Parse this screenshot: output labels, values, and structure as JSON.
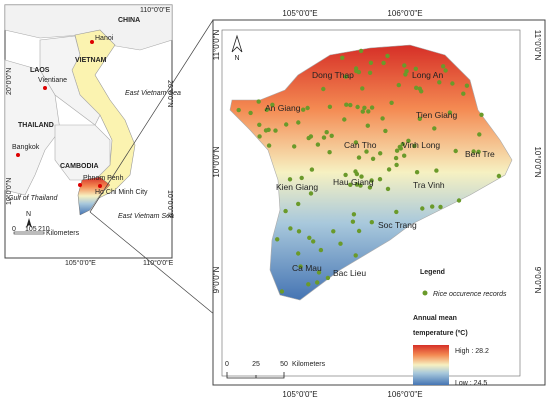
{
  "inset": {
    "countries": [
      "CHINA",
      "VIETNAM",
      "LAOS",
      "THAILAND",
      "CAMBODIA"
    ],
    "cities": [
      "Hanoi",
      "Vientiane",
      "Bangkok",
      "Phnom Penh",
      "Ho Chi Minh City"
    ],
    "seas": [
      "East Vietnam Sea",
      "Gulf of Thailand",
      "East Vietnam Sea"
    ],
    "lon_top": [
      "110°0'0\"E"
    ],
    "lon_bottom": [
      "105°0'0\"E",
      "110°0'0\"E"
    ],
    "lat_left": [
      "20°0'0\"N",
      "10°0'0\"N"
    ],
    "lat_right": [
      "20°0'0\"N",
      "10°0'0\"N"
    ],
    "north": "N",
    "scale": [
      "0",
      "105",
      "210"
    ],
    "scale_unit": "Kilometers"
  },
  "map": {
    "lon_top": [
      "105°0'0\"E",
      "106°0'0\"E"
    ],
    "lon_bottom": [
      "105°0'0\"E",
      "106°0'0\"E"
    ],
    "lat_left": [
      "11°0'0\"N",
      "10°0'0\"N",
      "9°0'0\"N"
    ],
    "lat_right": [
      "11°0'0\"N",
      "10°0'0\"N",
      "9°0'0\"N"
    ],
    "north": "N",
    "provinces": [
      "Dong Thap",
      "Long An",
      "An Giang",
      "Tien Giang",
      "Can Tho",
      "Vinh Long",
      "Ben Tre",
      "Kien Giang",
      "Hau Giang",
      "Tra Vinh",
      "Soc Trang",
      "Bac Lieu",
      "Ca Mau"
    ],
    "scale": [
      "0",
      "25",
      "50"
    ],
    "scale_unit": "Kilometers"
  },
  "legend": {
    "title": "Legend",
    "points": "Rice occurence records",
    "ramp_title": [
      "Annual mean",
      "temperature (ºC)"
    ],
    "high": "High : 28.2",
    "low": "Low : 24.5"
  }
}
